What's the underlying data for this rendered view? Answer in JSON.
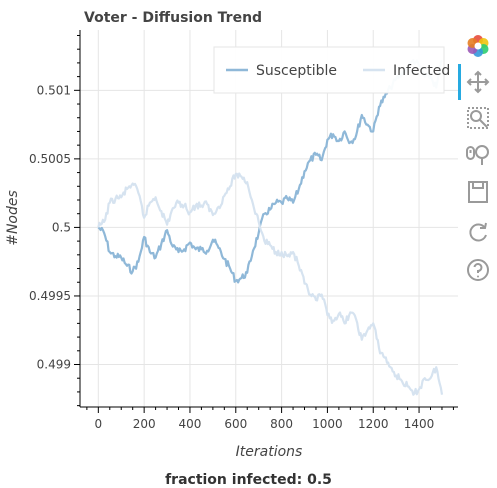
{
  "chart_data": {
    "type": "line",
    "title": "Voter - Diffusion Trend",
    "xlabel": "Iterations",
    "ylabel": "#Nodes",
    "xlim": [
      -80,
      1570
    ],
    "ylim": [
      0.49869,
      0.50144
    ],
    "x_ticks": [
      0,
      200,
      400,
      600,
      800,
      1000,
      1200,
      1400
    ],
    "x_tick_labels": [
      "0",
      "200",
      "400",
      "600",
      "800",
      "1000",
      "1200",
      "1400"
    ],
    "y_ticks": [
      0.499,
      0.4995,
      0.5,
      0.5005,
      0.501
    ],
    "y_tick_labels": [
      "0.499",
      "0.4995",
      "0.5",
      "0.5005",
      "0.501"
    ],
    "grid": true,
    "legend": "top-right",
    "series": [
      {
        "name": "Susceptible",
        "color": "#8fb8d8",
        "x": [
          0,
          25,
          50,
          75,
          100,
          125,
          150,
          175,
          200,
          225,
          250,
          275,
          300,
          325,
          350,
          375,
          400,
          425,
          450,
          475,
          500,
          525,
          550,
          575,
          600,
          625,
          650,
          675,
          700,
          725,
          750,
          775,
          800,
          825,
          850,
          875,
          900,
          925,
          950,
          975,
          1000,
          1025,
          1050,
          1075,
          1100,
          1125,
          1150,
          1175,
          1200,
          1225,
          1250,
          1275,
          1300,
          1325,
          1350,
          1375,
          1400,
          1425,
          1450,
          1475,
          1500
        ],
        "y": [
          0.5,
          0.49996,
          0.49982,
          0.49979,
          0.49978,
          0.49972,
          0.49968,
          0.49975,
          0.49993,
          0.49982,
          0.49978,
          0.49988,
          0.49998,
          0.49986,
          0.49982,
          0.49984,
          0.49989,
          0.49984,
          0.49984,
          0.49983,
          0.49991,
          0.49985,
          0.49977,
          0.4997,
          0.49961,
          0.49963,
          0.49967,
          0.49983,
          0.49996,
          0.5001,
          0.50013,
          0.50018,
          0.50018,
          0.50021,
          0.50018,
          0.50028,
          0.50041,
          0.50049,
          0.50053,
          0.50049,
          0.50064,
          0.50068,
          0.50063,
          0.5007,
          0.50062,
          0.50067,
          0.50082,
          0.50075,
          0.5007,
          0.50088,
          0.50095,
          0.50102,
          0.50108,
          0.50112,
          0.50116,
          0.50122,
          0.50118,
          0.5011,
          0.5011,
          0.50102,
          0.50122
        ]
      },
      {
        "name": "Infected",
        "color": "#d6e3f0",
        "x": [
          0,
          25,
          50,
          75,
          100,
          125,
          150,
          175,
          200,
          225,
          250,
          275,
          300,
          325,
          350,
          375,
          400,
          425,
          450,
          475,
          500,
          525,
          550,
          575,
          600,
          625,
          650,
          675,
          700,
          725,
          750,
          775,
          800,
          825,
          850,
          875,
          900,
          925,
          950,
          975,
          1000,
          1025,
          1050,
          1075,
          1100,
          1125,
          1150,
          1175,
          1200,
          1225,
          1250,
          1275,
          1300,
          1325,
          1350,
          1375,
          1400,
          1425,
          1450,
          1475,
          1500
        ],
        "y": [
          0.5,
          0.50004,
          0.50018,
          0.50021,
          0.50022,
          0.50028,
          0.50032,
          0.50025,
          0.50007,
          0.50018,
          0.50022,
          0.50012,
          0.50002,
          0.50014,
          0.50018,
          0.50016,
          0.50011,
          0.50016,
          0.50016,
          0.50017,
          0.50009,
          0.50015,
          0.50023,
          0.5003,
          0.50039,
          0.50037,
          0.50033,
          0.50017,
          0.50004,
          0.4999,
          0.49987,
          0.49982,
          0.49982,
          0.49979,
          0.49982,
          0.49972,
          0.49959,
          0.49951,
          0.49947,
          0.49951,
          0.49936,
          0.49932,
          0.49937,
          0.4993,
          0.49938,
          0.49933,
          0.49918,
          0.49925,
          0.4993,
          0.49912,
          0.49905,
          0.49898,
          0.49892,
          0.49888,
          0.49884,
          0.49878,
          0.49882,
          0.4989,
          0.4989,
          0.49898,
          0.49878
        ]
      }
    ]
  },
  "footer": {
    "text": "fraction infected: 0.5"
  },
  "toolbar": {
    "tools": [
      {
        "name": "bokeh-logo-icon",
        "active": false
      },
      {
        "name": "pan-icon",
        "active": true
      },
      {
        "name": "box-zoom-icon",
        "active": false
      },
      {
        "name": "wheel-zoom-icon",
        "active": false
      },
      {
        "name": "save-icon",
        "active": false
      },
      {
        "name": "reset-icon",
        "active": false
      },
      {
        "name": "help-icon",
        "active": false
      }
    ],
    "active_color": "#26aae1"
  }
}
